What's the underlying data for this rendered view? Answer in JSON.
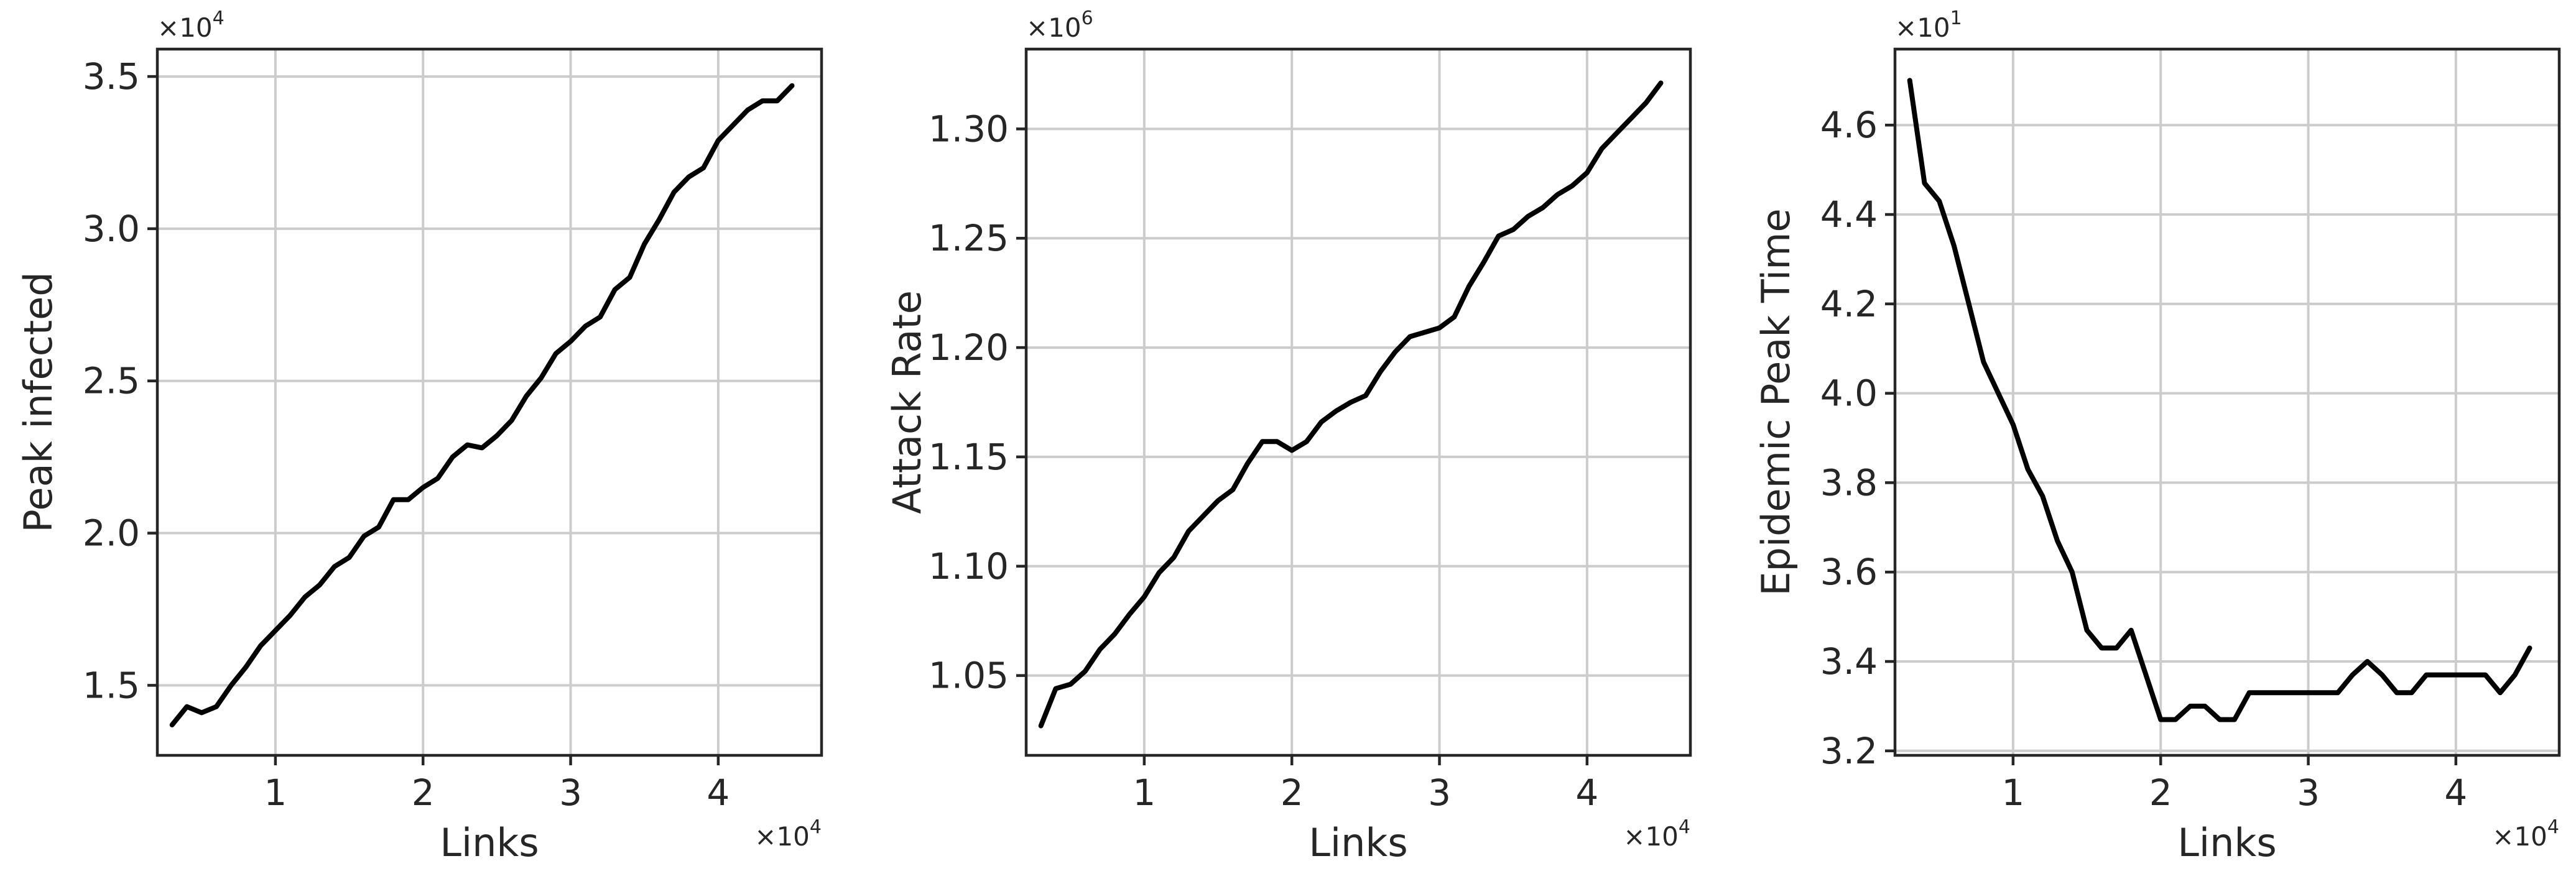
{
  "chart_data": [
    {
      "type": "line",
      "title": "",
      "xlabel": "Links",
      "ylabel": "Peak infected",
      "x_multiplier": "×10^4",
      "y_multiplier": "×10^4",
      "xlim": [
        0.2,
        4.7
      ],
      "ylim": [
        1.27,
        3.59
      ],
      "x_ticks": [
        1,
        2,
        3,
        4
      ],
      "x_tick_labels": [
        "1",
        "2",
        "3",
        "4"
      ],
      "y_ticks": [
        1.5,
        2.0,
        2.5,
        3.0,
        3.5
      ],
      "y_tick_labels": [
        "1.5",
        "2.0",
        "2.5",
        "3.0",
        "3.5"
      ],
      "grid": true,
      "color": "#000000",
      "x": [
        0.3,
        0.4,
        0.5,
        0.6,
        0.7,
        0.8,
        0.9,
        1.0,
        1.1,
        1.2,
        1.3,
        1.4,
        1.5,
        1.6,
        1.7,
        1.8,
        1.9,
        2.0,
        2.1,
        2.2,
        2.3,
        2.4,
        2.5,
        2.6,
        2.7,
        2.8,
        2.9,
        3.0,
        3.1,
        3.2,
        3.3,
        3.4,
        3.5,
        3.6,
        3.7,
        3.8,
        3.9,
        4.0,
        4.1,
        4.2,
        4.3,
        4.4,
        4.5
      ],
      "y": [
        1.37,
        1.43,
        1.41,
        1.43,
        1.5,
        1.56,
        1.63,
        1.68,
        1.73,
        1.79,
        1.83,
        1.89,
        1.92,
        1.99,
        2.02,
        2.11,
        2.11,
        2.15,
        2.18,
        2.25,
        2.29,
        2.28,
        2.32,
        2.37,
        2.45,
        2.51,
        2.59,
        2.63,
        2.68,
        2.71,
        2.8,
        2.84,
        2.95,
        3.03,
        3.12,
        3.17,
        3.2,
        3.29,
        3.34,
        3.39,
        3.42,
        3.42,
        3.47
      ]
    },
    {
      "type": "line",
      "title": "",
      "xlabel": "Links",
      "ylabel": "Attack Rate",
      "x_multiplier": "×10^4",
      "y_multiplier": "×10^6",
      "xlim": [
        0.2,
        4.7
      ],
      "ylim": [
        1.0135,
        1.3365
      ],
      "x_ticks": [
        1,
        2,
        3,
        4
      ],
      "x_tick_labels": [
        "1",
        "2",
        "3",
        "4"
      ],
      "y_ticks": [
        1.05,
        1.1,
        1.15,
        1.2,
        1.25,
        1.3
      ],
      "y_tick_labels": [
        "1.05",
        "1.10",
        "1.15",
        "1.20",
        "1.25",
        "1.30"
      ],
      "grid": true,
      "color": "#000000",
      "x": [
        0.3,
        0.4,
        0.5,
        0.6,
        0.7,
        0.8,
        0.9,
        1.0,
        1.1,
        1.2,
        1.3,
        1.4,
        1.5,
        1.6,
        1.7,
        1.8,
        1.9,
        2.0,
        2.1,
        2.2,
        2.3,
        2.4,
        2.5,
        2.6,
        2.7,
        2.8,
        2.9,
        3.0,
        3.1,
        3.2,
        3.3,
        3.4,
        3.5,
        3.6,
        3.7,
        3.8,
        3.9,
        4.0,
        4.1,
        4.2,
        4.3,
        4.4,
        4.5
      ],
      "y": [
        1.027,
        1.044,
        1.046,
        1.052,
        1.062,
        1.069,
        1.078,
        1.086,
        1.097,
        1.104,
        1.116,
        1.123,
        1.13,
        1.135,
        1.147,
        1.157,
        1.157,
        1.153,
        1.157,
        1.166,
        1.171,
        1.175,
        1.178,
        1.189,
        1.198,
        1.205,
        1.207,
        1.209,
        1.214,
        1.228,
        1.239,
        1.251,
        1.254,
        1.26,
        1.264,
        1.27,
        1.274,
        1.28,
        1.291,
        1.298,
        1.305,
        1.312,
        1.321
      ]
    },
    {
      "type": "line",
      "title": "",
      "xlabel": "Links",
      "ylabel": "Epidemic Peak Time",
      "x_multiplier": "×10^4",
      "y_multiplier": "×10^1",
      "xlim": [
        0.2,
        4.7
      ],
      "ylim": [
        3.19,
        4.77
      ],
      "x_ticks": [
        1,
        2,
        3,
        4
      ],
      "x_tick_labels": [
        "1",
        "2",
        "3",
        "4"
      ],
      "y_ticks": [
        3.2,
        3.4,
        3.6,
        3.8,
        4.0,
        4.2,
        4.4,
        4.6
      ],
      "y_tick_labels": [
        "3.2",
        "3.4",
        "3.6",
        "3.8",
        "4.0",
        "4.2",
        "4.4",
        "4.6"
      ],
      "grid": true,
      "color": "#000000",
      "x": [
        0.3,
        0.4,
        0.5,
        0.6,
        0.7,
        0.8,
        0.9,
        1.0,
        1.1,
        1.2,
        1.3,
        1.4,
        1.5,
        1.6,
        1.7,
        1.8,
        1.9,
        2.0,
        2.1,
        2.2,
        2.3,
        2.4,
        2.5,
        2.6,
        2.7,
        2.8,
        2.9,
        3.0,
        3.1,
        3.2,
        3.3,
        3.4,
        3.5,
        3.6,
        3.7,
        3.8,
        3.9,
        4.0,
        4.1,
        4.2,
        4.3,
        4.4,
        4.5
      ],
      "y": [
        4.7,
        4.47,
        4.43,
        4.33,
        4.2,
        4.07,
        4.0,
        3.93,
        3.83,
        3.77,
        3.67,
        3.6,
        3.47,
        3.43,
        3.43,
        3.47,
        3.37,
        3.27,
        3.27,
        3.3,
        3.3,
        3.27,
        3.27,
        3.33,
        3.33,
        3.33,
        3.33,
        3.33,
        3.33,
        3.33,
        3.37,
        3.4,
        3.37,
        3.33,
        3.33,
        3.37,
        3.37,
        3.37,
        3.37,
        3.37,
        3.33,
        3.37,
        3.43
      ]
    }
  ]
}
